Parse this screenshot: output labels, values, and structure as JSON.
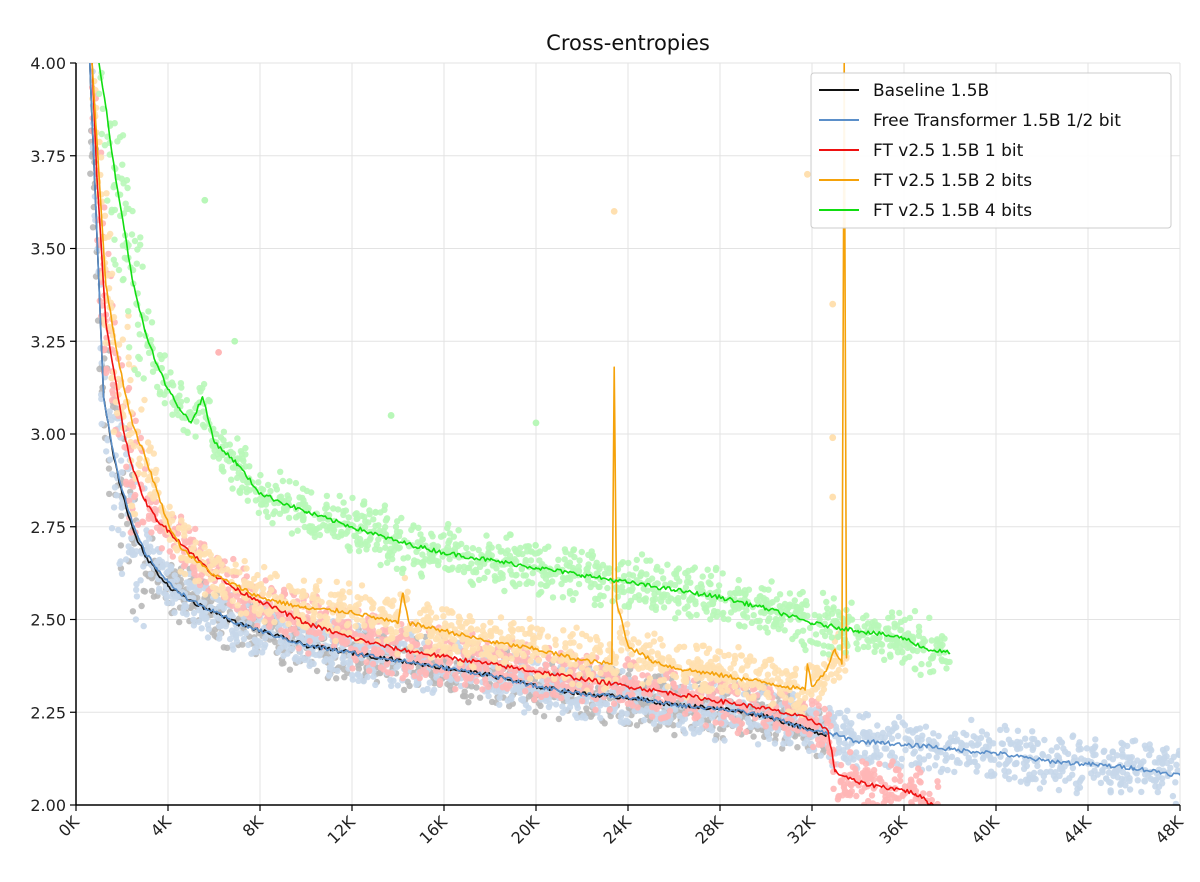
{
  "chart_data": {
    "type": "line",
    "title": "Cross-entropies",
    "xlabel": "",
    "ylabel": "",
    "xlim": [
      0,
      48000
    ],
    "ylim": [
      2.0,
      4.0
    ],
    "grid": true,
    "legend_position": "top-right",
    "x_ticks": [
      0,
      4000,
      8000,
      12000,
      16000,
      20000,
      24000,
      28000,
      32000,
      36000,
      40000,
      44000,
      48000
    ],
    "x_tick_labels": [
      "0K",
      "4K",
      "8K",
      "12K",
      "16K",
      "20K",
      "24K",
      "28K",
      "32K",
      "36K",
      "40K",
      "44K",
      "48K"
    ],
    "y_ticks": [
      2.0,
      2.25,
      2.5,
      2.75,
      3.0,
      3.25,
      3.5,
      3.75,
      4.0
    ],
    "y_tick_labels": [
      "2.00",
      "2.25",
      "2.50",
      "2.75",
      "3.00",
      "3.25",
      "3.50",
      "3.75",
      "4.00"
    ],
    "series": [
      {
        "name": "Baseline 1.5B",
        "color": "#111111",
        "scatter_color": "#b8b8b8",
        "x": [
          600,
          800,
          1200,
          1600,
          2000,
          2500,
          3000,
          3500,
          4000,
          5000,
          6000,
          7000,
          8000,
          10000,
          12000,
          14000,
          16000,
          18000,
          20000,
          22000,
          24000,
          26000,
          28000,
          30000,
          32000,
          32600
        ],
        "y": [
          4.0,
          3.7,
          3.1,
          2.95,
          2.84,
          2.74,
          2.67,
          2.63,
          2.59,
          2.55,
          2.52,
          2.49,
          2.47,
          2.43,
          2.41,
          2.39,
          2.37,
          2.35,
          2.32,
          2.3,
          2.29,
          2.27,
          2.26,
          2.24,
          2.2,
          2.19
        ]
      },
      {
        "name": "Free Transformer 1.5B 1/2 bit",
        "color": "#5b8fc9",
        "scatter_color": "#c6d7ea",
        "x": [
          600,
          800,
          1200,
          1600,
          2000,
          2500,
          3000,
          3500,
          4000,
          5000,
          6000,
          7000,
          8000,
          10000,
          12000,
          14000,
          16000,
          18000,
          20000,
          22000,
          24000,
          26000,
          28000,
          30000,
          32000,
          33000,
          34000,
          35000,
          36000,
          37000,
          38000,
          40000,
          42000,
          44000,
          46000,
          47000,
          48000
        ],
        "y": [
          4.0,
          3.7,
          3.1,
          2.96,
          2.85,
          2.75,
          2.68,
          2.64,
          2.6,
          2.55,
          2.52,
          2.49,
          2.47,
          2.43,
          2.41,
          2.39,
          2.37,
          2.35,
          2.32,
          2.3,
          2.29,
          2.27,
          2.26,
          2.24,
          2.2,
          2.19,
          2.17,
          2.17,
          2.16,
          2.16,
          2.15,
          2.14,
          2.12,
          2.11,
          2.1,
          2.09,
          2.08
        ]
      },
      {
        "name": "FT v2.5 1.5B 1 bit",
        "color": "#ee1111",
        "scatter_color": "#ffb6b6",
        "x": [
          700,
          900,
          1300,
          1700,
          2100,
          2500,
          3000,
          3500,
          4000,
          4500,
          5000,
          6000,
          7000,
          8000,
          9000,
          10000,
          12000,
          14000,
          16000,
          18000,
          20000,
          22000,
          24000,
          26000,
          28000,
          30000,
          32000,
          32700,
          33000,
          34000,
          35000,
          36000,
          36500,
          37000,
          37500
        ],
        "y": [
          4.0,
          3.7,
          3.3,
          3.15,
          3.0,
          2.9,
          2.82,
          2.77,
          2.74,
          2.71,
          2.68,
          2.62,
          2.58,
          2.55,
          2.52,
          2.49,
          2.45,
          2.42,
          2.4,
          2.38,
          2.36,
          2.34,
          2.32,
          2.3,
          2.28,
          2.26,
          2.23,
          2.2,
          2.09,
          2.06,
          2.05,
          2.04,
          2.03,
          2.01,
          1.99
        ]
      },
      {
        "name": "FT v2.5 1.5B 2 bits",
        "color": "#f5a20a",
        "scatter_color": "#ffe0b0",
        "x": [
          700,
          900,
          1300,
          1700,
          2100,
          2500,
          3000,
          3500,
          4000,
          4500,
          5000,
          6000,
          7000,
          8000,
          10000,
          12000,
          14000,
          14200,
          14500,
          16000,
          18000,
          20000,
          22000,
          23300,
          23400,
          23500,
          24000,
          25000,
          26000,
          28000,
          30000,
          31700,
          31800,
          32000,
          32500,
          33000,
          33300,
          33400,
          33500
        ],
        "y": [
          4.0,
          3.8,
          3.4,
          3.25,
          3.12,
          3.02,
          2.94,
          2.85,
          2.76,
          2.7,
          2.67,
          2.62,
          2.59,
          2.56,
          2.53,
          2.52,
          2.49,
          2.57,
          2.49,
          2.47,
          2.44,
          2.42,
          2.39,
          2.38,
          3.18,
          2.55,
          2.43,
          2.39,
          2.37,
          2.35,
          2.33,
          2.31,
          2.38,
          2.32,
          2.35,
          2.42,
          2.38,
          4.0,
          2.4
        ]
      },
      {
        "name": "FT v2.5 1.5B 4 bits",
        "color": "#11dd11",
        "scatter_color": "#b8f7b8",
        "x": [
          1000,
          1300,
          1700,
          2100,
          2500,
          3000,
          3500,
          4000,
          4500,
          5000,
          5500,
          6000,
          7000,
          8000,
          10000,
          12000,
          14000,
          16000,
          18000,
          20000,
          22000,
          24000,
          26000,
          28000,
          30000,
          32000,
          34000,
          36000,
          37000,
          38000
        ],
        "y": [
          4.0,
          3.88,
          3.7,
          3.55,
          3.4,
          3.28,
          3.19,
          3.12,
          3.07,
          3.03,
          3.1,
          2.98,
          2.92,
          2.84,
          2.79,
          2.75,
          2.71,
          2.68,
          2.66,
          2.64,
          2.62,
          2.6,
          2.58,
          2.56,
          2.53,
          2.49,
          2.47,
          2.45,
          2.42,
          2.41
        ]
      }
    ],
    "outlier_points": [
      {
        "x": 23400,
        "y": 3.6,
        "series": "FT v2.5 1.5B 2 bits"
      },
      {
        "x": 31800,
        "y": 3.7,
        "series": "FT v2.5 1.5B 2 bits"
      },
      {
        "x": 32900,
        "y": 3.35,
        "series": "FT v2.5 1.5B 2 bits"
      },
      {
        "x": 32900,
        "y": 2.99,
        "series": "FT v2.5 1.5B 2 bits"
      },
      {
        "x": 32900,
        "y": 2.83,
        "series": "FT v2.5 1.5B 2 bits"
      },
      {
        "x": 5600,
        "y": 3.63,
        "series": "FT v2.5 1.5B 4 bits"
      },
      {
        "x": 6900,
        "y": 3.25,
        "series": "FT v2.5 1.5B 4 bits"
      },
      {
        "x": 13700,
        "y": 3.05,
        "series": "FT v2.5 1.5B 4 bits"
      },
      {
        "x": 20000,
        "y": 3.03,
        "series": "FT v2.5 1.5B 4 bits"
      },
      {
        "x": 6200,
        "y": 3.22,
        "series": "FT v2.5 1.5B 1 bit"
      }
    ]
  }
}
